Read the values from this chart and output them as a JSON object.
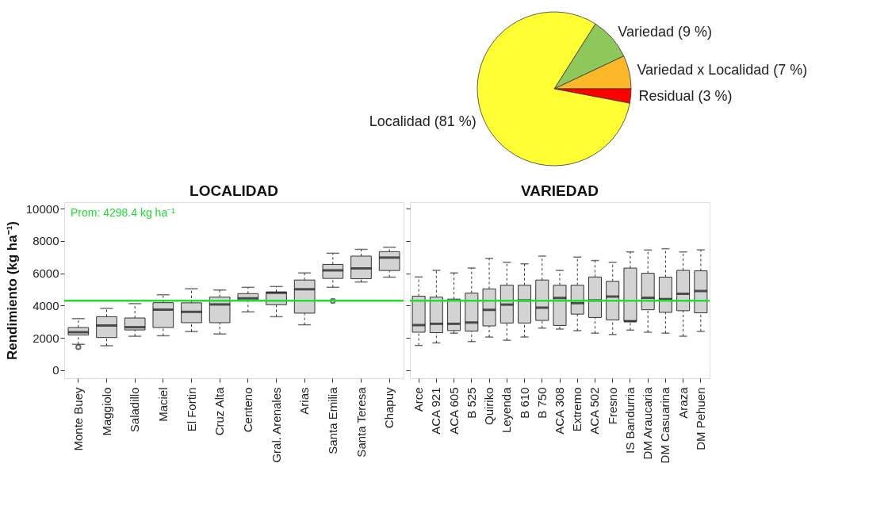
{
  "chart_data": [
    {
      "type": "pie",
      "categories": [
        "Variedad (9 %)",
        "Variedad x Localidad (7 %)",
        "Residual (3 %)",
        "Localidad (81 %)"
      ],
      "values": [
        9,
        7,
        3,
        81
      ],
      "colors": [
        "#8fc85a",
        "#fbb829",
        "#ff0000",
        "#ffff33"
      ],
      "legend": false
    },
    {
      "type": "box",
      "title": "LOCALIDAD",
      "ylabel": "Rendimiento (kg ha⁻¹)",
      "categories": [
        "Monte Buey",
        "Maggiolo",
        "Saladillo",
        "Maciel",
        "El Fortin",
        "Cruz Alta",
        "Centeno",
        "Gral. Arenales",
        "Arias",
        "Santa Emilia",
        "Santa Teresa",
        "Chapuy"
      ],
      "ylim": [
        -500,
        10400
      ],
      "yticks": [
        0,
        2000,
        4000,
        6000,
        8000,
        10000
      ],
      "line_style": "dashed",
      "ref_lines": [
        {
          "axis": "y",
          "value": 4298.4,
          "label": "Prom: 4298.4 kg ha⁻¹",
          "color": "#22dd33"
        }
      ],
      "series": [
        {
          "color": "#d3d3d3",
          "boxes": [
            {
              "low": 1600,
              "q1": 2180,
              "median": 2350,
              "q3": 2640,
              "high": 3190,
              "outliers": [
                1430
              ]
            },
            {
              "low": 1510,
              "q1": 2020,
              "median": 2770,
              "q3": 3310,
              "high": 3830
            },
            {
              "low": 2100,
              "q1": 2490,
              "median": 2660,
              "q3": 3230,
              "high": 4120
            },
            {
              "low": 2130,
              "q1": 2640,
              "median": 3750,
              "q3": 4180,
              "high": 4670
            },
            {
              "low": 2390,
              "q1": 2940,
              "median": 3610,
              "q3": 4170,
              "high": 5040
            },
            {
              "low": 2240,
              "q1": 2940,
              "median": 4070,
              "q3": 4520,
              "high": 4960
            },
            {
              "low": 3610,
              "q1": 4290,
              "median": 4450,
              "q3": 4740,
              "high": 5130
            },
            {
              "low": 3310,
              "q1": 4050,
              "median": 4790,
              "q3": 4840,
              "high": 5180
            },
            {
              "low": 2810,
              "q1": 3530,
              "median": 5010,
              "q3": 5580,
              "high": 6020
            },
            {
              "low": 5130,
              "q1": 5680,
              "median": 6180,
              "q3": 6550,
              "high": 7240,
              "outliers": [
                4290
              ]
            },
            {
              "low": 5460,
              "q1": 5660,
              "median": 6300,
              "q3": 7060,
              "high": 7480
            },
            {
              "low": 5760,
              "q1": 6170,
              "median": 6970,
              "q3": 7340,
              "high": 7610
            }
          ]
        }
      ]
    },
    {
      "type": "box",
      "title": "VARIEDAD",
      "categories": [
        "Arce",
        "ACA 921",
        "ACA 605",
        "B 525",
        "Quiriko",
        "Leyenda",
        "B 610",
        "B 750",
        "ACA 308",
        "Extremo",
        "ACA 502",
        "Fresno",
        "IS Bandurria",
        "DM Araucaria",
        "DM Casuarina",
        "Araza",
        "DM Pehuen"
      ],
      "ylim": [
        -500,
        10400
      ],
      "yticks": [
        0,
        2000,
        4000,
        6000,
        8000,
        10000
      ],
      "tick_labels": "x",
      "line_style": "dashed",
      "ref_lines": [
        {
          "axis": "y",
          "value": 4298.4,
          "color": "#22dd33"
        }
      ],
      "series": [
        {
          "color": "#d3d3d3",
          "boxes": [
            {
              "low": 1530,
              "q1": 2350,
              "median": 2790,
              "q3": 4580,
              "high": 5770
            },
            {
              "low": 1690,
              "q1": 2320,
              "median": 2870,
              "q3": 4520,
              "high": 6180
            },
            {
              "low": 2290,
              "q1": 2450,
              "median": 2870,
              "q3": 4400,
              "high": 6020
            },
            {
              "low": 1770,
              "q1": 2420,
              "median": 2950,
              "q3": 4770,
              "high": 6320
            },
            {
              "low": 2050,
              "q1": 2740,
              "median": 3740,
              "q3": 5030,
              "high": 6920
            },
            {
              "low": 1850,
              "q1": 2920,
              "median": 4060,
              "q3": 5260,
              "high": 6680
            },
            {
              "low": 2050,
              "q1": 2920,
              "median": 4320,
              "q3": 5260,
              "high": 6580
            },
            {
              "low": 2600,
              "q1": 3080,
              "median": 3870,
              "q3": 5580,
              "high": 7060
            },
            {
              "low": 2550,
              "q1": 2770,
              "median": 4470,
              "q3": 5260,
              "high": 6180
            },
            {
              "low": 2440,
              "q1": 3470,
              "median": 4150,
              "q3": 5260,
              "high": 7000
            },
            {
              "low": 2290,
              "q1": 3260,
              "median": 4320,
              "q3": 5770,
              "high": 6790
            },
            {
              "low": 2210,
              "q1": 3110,
              "median": 4560,
              "q3": 5500,
              "high": 6680
            },
            {
              "low": 2480,
              "q1": 3030,
              "median": 3030,
              "q3": 6320,
              "high": 7320
            },
            {
              "low": 2350,
              "q1": 3740,
              "median": 4480,
              "q3": 6000,
              "high": 7440
            },
            {
              "low": 2290,
              "q1": 3580,
              "median": 4400,
              "q3": 5760,
              "high": 7520
            },
            {
              "low": 2100,
              "q1": 3680,
              "median": 4730,
              "q3": 6180,
              "high": 7320
            },
            {
              "low": 2400,
              "q1": 3550,
              "median": 4900,
              "q3": 6150,
              "high": 7450
            }
          ]
        }
      ]
    }
  ]
}
